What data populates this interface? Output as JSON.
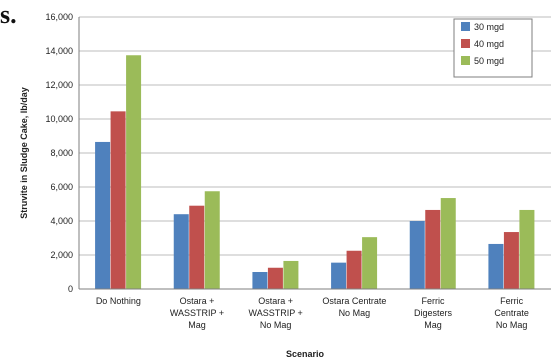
{
  "page": {
    "fragment_text": "s."
  },
  "chart_data": {
    "type": "bar",
    "title": "",
    "xlabel": "Scenario",
    "ylabel": "Struvite in Sludge Cake, lb/day",
    "ylim": [
      0,
      16000
    ],
    "yticks": [
      0,
      2000,
      4000,
      6000,
      8000,
      10000,
      12000,
      14000,
      16000
    ],
    "ytick_labels": [
      "0",
      "2,000",
      "4,000",
      "6,000",
      "8,000",
      "10,000",
      "12,000",
      "14,000",
      "16,000"
    ],
    "grid": true,
    "legend_position": "top-right",
    "categories": [
      [
        "Do Nothing"
      ],
      [
        "Ostara +",
        "WASSTRIP +",
        "Mag"
      ],
      [
        "Ostara +",
        "WASSTRIP +",
        "No Mag"
      ],
      [
        "Ostara Centrate",
        "No Mag"
      ],
      [
        "Ferric",
        "Digesters",
        "Mag"
      ],
      [
        "Ferric",
        "Centrate",
        "No Mag"
      ]
    ],
    "series": [
      {
        "name": "30 mgd",
        "color": "#4F81BD",
        "values": [
          8650,
          4400,
          1000,
          1550,
          4000,
          2650
        ]
      },
      {
        "name": "40 mgd",
        "color": "#C0504D",
        "values": [
          10450,
          4900,
          1250,
          2250,
          4650,
          3350
        ]
      },
      {
        "name": "50 mgd",
        "color": "#9BBB59",
        "values": [
          13750,
          5750,
          1650,
          3050,
          5350,
          4650
        ]
      }
    ]
  }
}
